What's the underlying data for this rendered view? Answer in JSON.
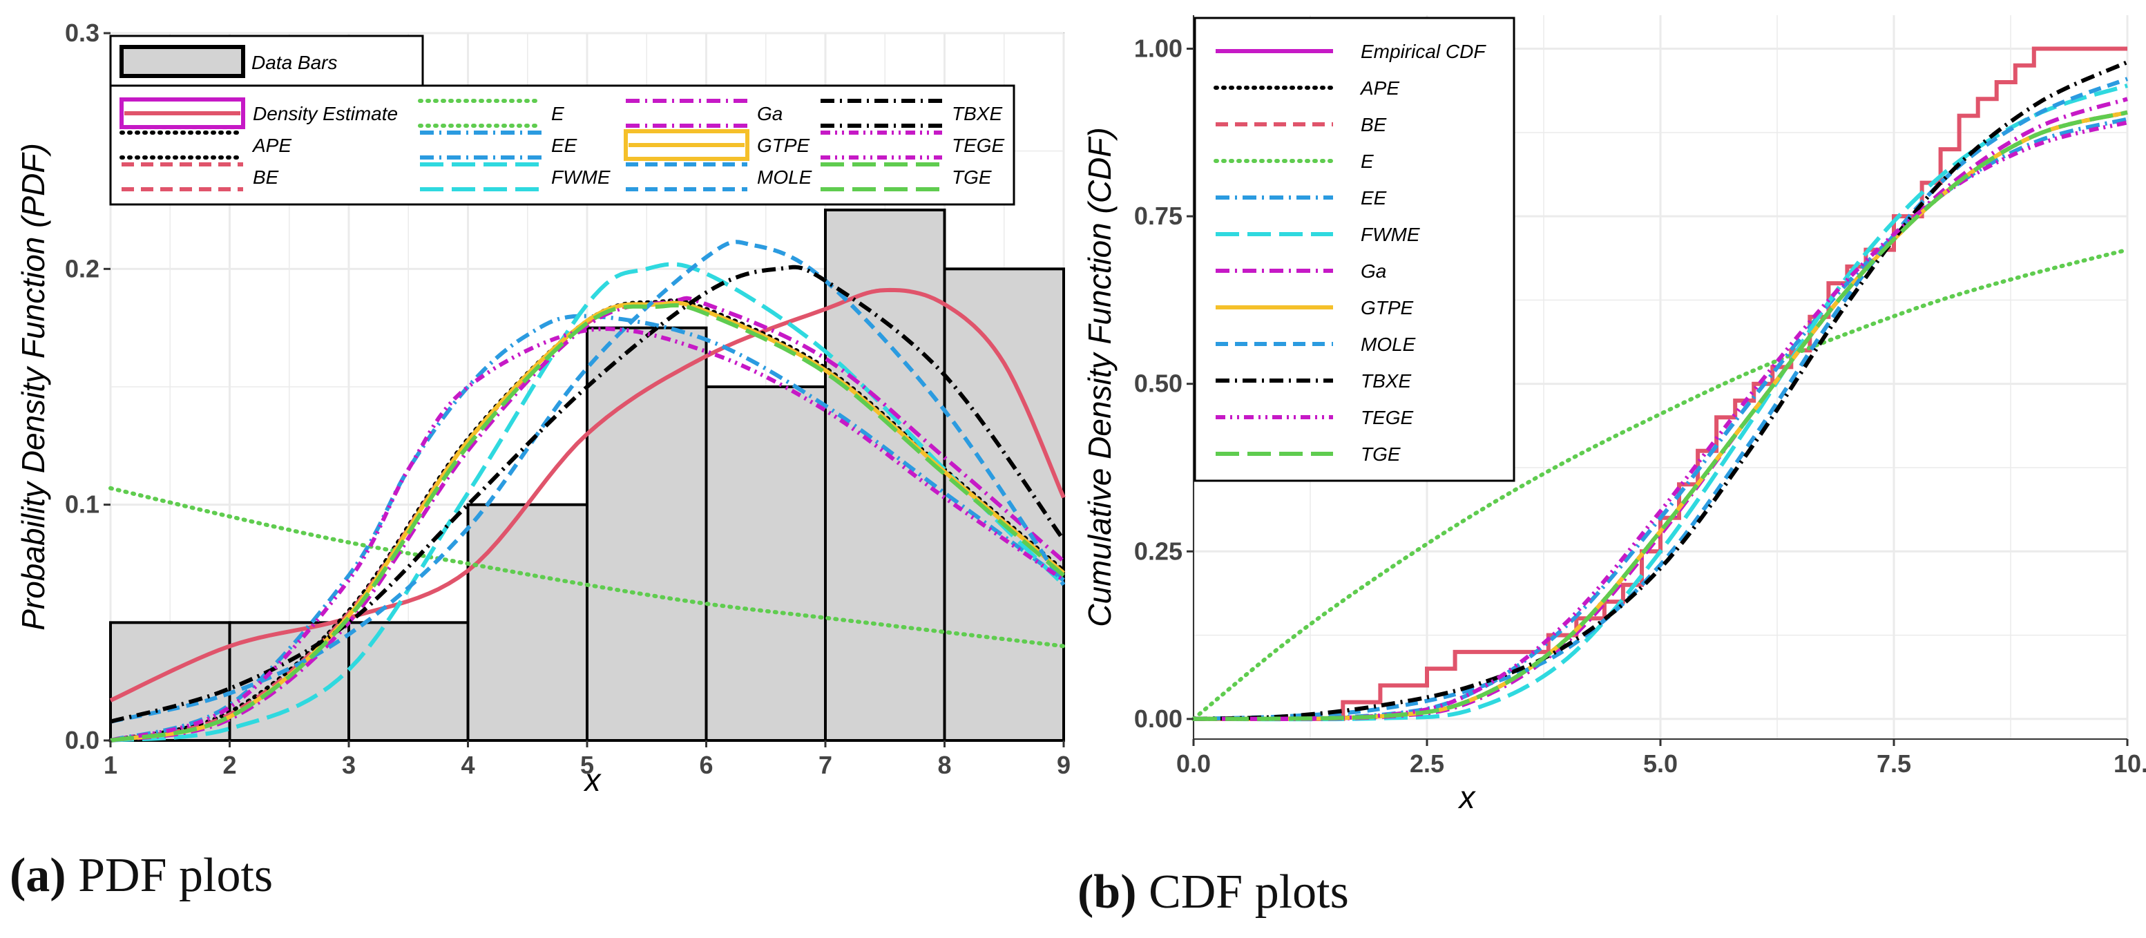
{
  "colors": {
    "density_estimate": "#c619c6",
    "empirical_cdf": "#c619c6",
    "APE": "#000000",
    "BE": "#e0546b",
    "E": "#5fcc4f",
    "EE": "#2b9be0",
    "FWME": "#2fd9df",
    "Ga": "#c619c6",
    "GTPE": "#f5c02a",
    "MOLE": "#2b9be0",
    "TBXE": "#000000",
    "TEGE": "#e0546b",
    "TGE": "#5fcc4f",
    "bars_fill": "#d3d3d3",
    "grid": "#ebebeb"
  },
  "captions": {
    "a_letter": "(a)",
    "a_text": " PDF plots",
    "b_letter": "(b)",
    "b_text": " CDF plots"
  },
  "chart_data": [
    {
      "type": "histogram+line",
      "id": "pdf",
      "title": "",
      "xlabel": "x",
      "ylabel": "Probability Density Function (PDF)",
      "xlim": [
        1,
        9
      ],
      "ylim": [
        0,
        0.3
      ],
      "x_ticks": [
        1,
        2,
        3,
        4,
        5,
        6,
        7,
        8,
        9
      ],
      "x_tick_labels": [
        "1",
        "2",
        "3",
        "4",
        "5",
        "6",
        "7",
        "8",
        "9"
      ],
      "y_ticks": [
        0,
        0.1,
        0.2,
        0.3
      ],
      "y_tick_labels": [
        "0.0",
        "0.1",
        "0.2",
        "0.3"
      ],
      "grid": true,
      "bars": {
        "name": "Data Bars",
        "edges": [
          1,
          2,
          3,
          4,
          5,
          6,
          7,
          8,
          9
        ],
        "heights": [
          0.05,
          0.05,
          0.05,
          0.1,
          0.175,
          0.15,
          0.225,
          0.2
        ]
      },
      "legend": {
        "position": "top",
        "top_box": [
          "Data Bars"
        ],
        "columns": [
          [
            "Density Estimate",
            "APE",
            "BE"
          ],
          [
            "E",
            "EE",
            "FWME"
          ],
          [
            "Ga",
            "GTPE",
            "MOLE"
          ],
          [
            "TBXE",
            "TEGE",
            "TGE"
          ]
        ]
      },
      "series": [
        {
          "name": "Density Estimate",
          "key": "BE_density",
          "style": "solid",
          "color_key": "BE",
          "x": [
            1,
            2,
            3,
            4,
            5,
            6,
            7,
            7.5,
            8,
            8.5,
            9
          ],
          "y": [
            0.017,
            0.04,
            0.052,
            0.072,
            0.13,
            0.163,
            0.183,
            0.191,
            0.185,
            0.16,
            0.103
          ]
        },
        {
          "name": "APE",
          "style": "dot",
          "color_key": "APE",
          "x": [
            1,
            2,
            3,
            4,
            5,
            5.6,
            6,
            7,
            8,
            9
          ],
          "y": [
            0.0,
            0.012,
            0.055,
            0.128,
            0.178,
            0.186,
            0.183,
            0.158,
            0.115,
            0.072
          ]
        },
        {
          "name": "BE",
          "style": "dash",
          "color_key": "BE",
          "x": [
            1,
            2,
            3,
            4,
            5,
            5.6,
            6,
            7,
            8,
            9
          ],
          "y": [
            0.0,
            0.011,
            0.054,
            0.127,
            0.177,
            0.185,
            0.182,
            0.157,
            0.114,
            0.071
          ]
        },
        {
          "name": "E",
          "style": "dot",
          "color_key": "E",
          "x": [
            1,
            2,
            3,
            4,
            5,
            6,
            7,
            8,
            9
          ],
          "y": [
            0.107,
            0.095,
            0.084,
            0.075,
            0.066,
            0.058,
            0.052,
            0.046,
            0.04
          ]
        },
        {
          "name": "EE",
          "style": "dashdot",
          "color_key": "EE",
          "x": [
            1,
            2,
            3,
            3.5,
            4,
            4.5,
            5,
            6,
            7,
            8,
            9
          ],
          "y": [
            0.0,
            0.015,
            0.07,
            0.115,
            0.15,
            0.172,
            0.18,
            0.17,
            0.142,
            0.105,
            0.068
          ]
        },
        {
          "name": "FWME",
          "style": "longdash",
          "color_key": "FWME",
          "x": [
            1,
            2,
            3,
            4,
            5,
            5.5,
            6,
            7,
            8,
            9
          ],
          "y": [
            0.0,
            0.005,
            0.03,
            0.105,
            0.185,
            0.2,
            0.198,
            0.165,
            0.115,
            0.066
          ]
        },
        {
          "name": "Ga",
          "style": "dashdot",
          "color_key": "Ga",
          "x": [
            1,
            2,
            3,
            4,
            5,
            5.7,
            6,
            7,
            8,
            9
          ],
          "y": [
            0.0,
            0.009,
            0.05,
            0.123,
            0.176,
            0.186,
            0.185,
            0.162,
            0.12,
            0.076
          ]
        },
        {
          "name": "GTPE",
          "style": "solid",
          "color_key": "GTPE",
          "x": [
            1,
            2,
            3,
            4,
            5,
            5.6,
            6,
            7,
            8,
            9
          ],
          "y": [
            0.0,
            0.01,
            0.053,
            0.127,
            0.178,
            0.185,
            0.182,
            0.157,
            0.114,
            0.071
          ]
        },
        {
          "name": "MOLE",
          "style": "dash",
          "color_key": "MOLE",
          "x": [
            1,
            2,
            3,
            4,
            5,
            6,
            6.4,
            7,
            8,
            9
          ],
          "y": [
            0.008,
            0.02,
            0.045,
            0.09,
            0.158,
            0.205,
            0.21,
            0.195,
            0.14,
            0.066
          ]
        },
        {
          "name": "TBXE",
          "style": "dashdot",
          "color_key": "TBXE",
          "x": [
            1,
            2,
            3,
            4,
            5,
            6,
            6.6,
            7,
            8,
            9
          ],
          "y": [
            0.008,
            0.022,
            0.05,
            0.1,
            0.15,
            0.19,
            0.2,
            0.195,
            0.155,
            0.085
          ]
        },
        {
          "name": "TEGE",
          "style": "dashdotdot",
          "color_key": "Ga",
          "x": [
            1,
            2,
            3,
            3.5,
            4,
            5,
            6,
            7,
            8,
            9
          ],
          "y": [
            0.0,
            0.014,
            0.068,
            0.115,
            0.15,
            0.174,
            0.165,
            0.14,
            0.103,
            0.068
          ]
        },
        {
          "name": "TGE",
          "style": "longdash",
          "color_key": "TGE",
          "x": [
            1,
            2,
            3,
            4,
            5,
            5.6,
            6,
            7,
            8,
            9
          ],
          "y": [
            0.0,
            0.01,
            0.052,
            0.125,
            0.177,
            0.184,
            0.181,
            0.156,
            0.113,
            0.07
          ]
        }
      ]
    },
    {
      "type": "line",
      "id": "cdf",
      "title": "",
      "xlabel": "x",
      "ylabel": "Cumulative Density Function (CDF)",
      "xlim": [
        0,
        10
      ],
      "ylim": [
        -0.03,
        1.05
      ],
      "x_ticks": [
        0,
        2.5,
        5,
        7.5,
        10
      ],
      "x_tick_labels": [
        "0.0",
        "2.5",
        "5.0",
        "7.5",
        "10."
      ],
      "y_ticks": [
        0,
        0.25,
        0.5,
        0.75,
        1.0
      ],
      "y_tick_labels": [
        "0.00",
        "0.25",
        "0.50",
        "0.75",
        "1.00"
      ],
      "grid": true,
      "legend": {
        "position": "top-left",
        "entries": [
          "Empirical CDF",
          "APE",
          "BE",
          "E",
          "EE",
          "FWME",
          "Ga",
          "GTPE",
          "MOLE",
          "TBXE",
          "TEGE",
          "TGE"
        ]
      },
      "empirical_step": {
        "color_key": "BE",
        "x": [
          0,
          1.6,
          2,
          2.5,
          2.8,
          3.8,
          4.1,
          4.4,
          4.6,
          4.8,
          5.0,
          5.2,
          5.4,
          5.6,
          5.8,
          6.0,
          6.2,
          6.4,
          6.6,
          6.8,
          7.0,
          7.2,
          7.5,
          7.8,
          8.0,
          8.2,
          8.4,
          8.6,
          8.8,
          9.0,
          10
        ],
        "y": [
          0,
          0.025,
          0.05,
          0.075,
          0.1,
          0.125,
          0.15,
          0.175,
          0.2,
          0.25,
          0.3,
          0.35,
          0.4,
          0.45,
          0.475,
          0.5,
          0.525,
          0.55,
          0.6,
          0.65,
          0.675,
          0.7,
          0.75,
          0.8,
          0.85,
          0.9,
          0.925,
          0.95,
          0.975,
          1.0,
          1.0
        ]
      },
      "series": [
        {
          "name": "Empirical CDF",
          "style": "solid",
          "color_key": "empirical_cdf",
          "legend_only": true,
          "x": [],
          "y": []
        },
        {
          "name": "APE",
          "style": "dot",
          "color_key": "APE",
          "x": [
            0,
            2,
            3,
            4,
            5,
            6,
            7,
            8,
            9,
            10
          ],
          "y": [
            0,
            0.004,
            0.03,
            0.12,
            0.28,
            0.46,
            0.64,
            0.78,
            0.87,
            0.905
          ]
        },
        {
          "name": "BE",
          "style": "dash",
          "color_key": "BE",
          "x": [
            0,
            2,
            3,
            4,
            5,
            6,
            7,
            8,
            9,
            10
          ],
          "y": [
            0,
            0.004,
            0.03,
            0.12,
            0.28,
            0.46,
            0.64,
            0.78,
            0.87,
            0.905
          ]
        },
        {
          "name": "E",
          "style": "dot",
          "color_key": "E",
          "x": [
            0,
            1,
            2,
            3,
            4,
            5,
            6,
            7,
            8,
            9,
            10
          ],
          "y": [
            0,
            0.115,
            0.215,
            0.305,
            0.385,
            0.455,
            0.52,
            0.575,
            0.625,
            0.665,
            0.7
          ]
        },
        {
          "name": "EE",
          "style": "dashdot",
          "color_key": "EE",
          "x": [
            0,
            2,
            3,
            4,
            5,
            6,
            7,
            8,
            9,
            10
          ],
          "y": [
            0,
            0.006,
            0.04,
            0.14,
            0.3,
            0.48,
            0.65,
            0.78,
            0.86,
            0.895
          ]
        },
        {
          "name": "FWME",
          "style": "longdash",
          "color_key": "FWME",
          "x": [
            0,
            2,
            3,
            4,
            5,
            6,
            7,
            8,
            9,
            10
          ],
          "y": [
            0,
            0.001,
            0.015,
            0.09,
            0.25,
            0.45,
            0.66,
            0.81,
            0.9,
            0.945
          ]
        },
        {
          "name": "Ga",
          "style": "dashdot",
          "color_key": "Ga",
          "x": [
            0,
            2,
            3,
            4,
            5,
            6,
            7,
            8,
            9,
            10
          ],
          "y": [
            0,
            0.003,
            0.027,
            0.115,
            0.275,
            0.46,
            0.64,
            0.785,
            0.88,
            0.925
          ]
        },
        {
          "name": "GTPE",
          "style": "solid",
          "color_key": "GTPE",
          "x": [
            0,
            2,
            3,
            4,
            5,
            6,
            7,
            8,
            9,
            10
          ],
          "y": [
            0,
            0.004,
            0.03,
            0.12,
            0.28,
            0.46,
            0.64,
            0.78,
            0.87,
            0.905
          ]
        },
        {
          "name": "MOLE",
          "style": "dash",
          "color_key": "MOLE",
          "x": [
            0,
            1,
            2,
            3,
            4,
            5,
            6,
            7,
            8,
            9,
            10
          ],
          "y": [
            0,
            0.004,
            0.015,
            0.045,
            0.105,
            0.23,
            0.42,
            0.63,
            0.8,
            0.9,
            0.955
          ]
        },
        {
          "name": "TBXE",
          "style": "dashdot",
          "color_key": "TBXE",
          "x": [
            0,
            1,
            2,
            3,
            4,
            5,
            6,
            7,
            8,
            9,
            10
          ],
          "y": [
            0,
            0.004,
            0.02,
            0.05,
            0.11,
            0.225,
            0.41,
            0.62,
            0.8,
            0.915,
            0.98
          ]
        },
        {
          "name": "TEGE",
          "style": "dashdotdot",
          "color_key": "Ga",
          "x": [
            0,
            2,
            3,
            4,
            5,
            6,
            7,
            8,
            9,
            10
          ],
          "y": [
            0,
            0.005,
            0.04,
            0.145,
            0.31,
            0.49,
            0.655,
            0.78,
            0.855,
            0.89
          ]
        },
        {
          "name": "TGE",
          "style": "longdash",
          "color_key": "TGE",
          "x": [
            0,
            2,
            3,
            4,
            5,
            6,
            7,
            8,
            9,
            10
          ],
          "y": [
            0,
            0.004,
            0.03,
            0.12,
            0.28,
            0.46,
            0.64,
            0.78,
            0.87,
            0.905
          ]
        }
      ]
    }
  ]
}
